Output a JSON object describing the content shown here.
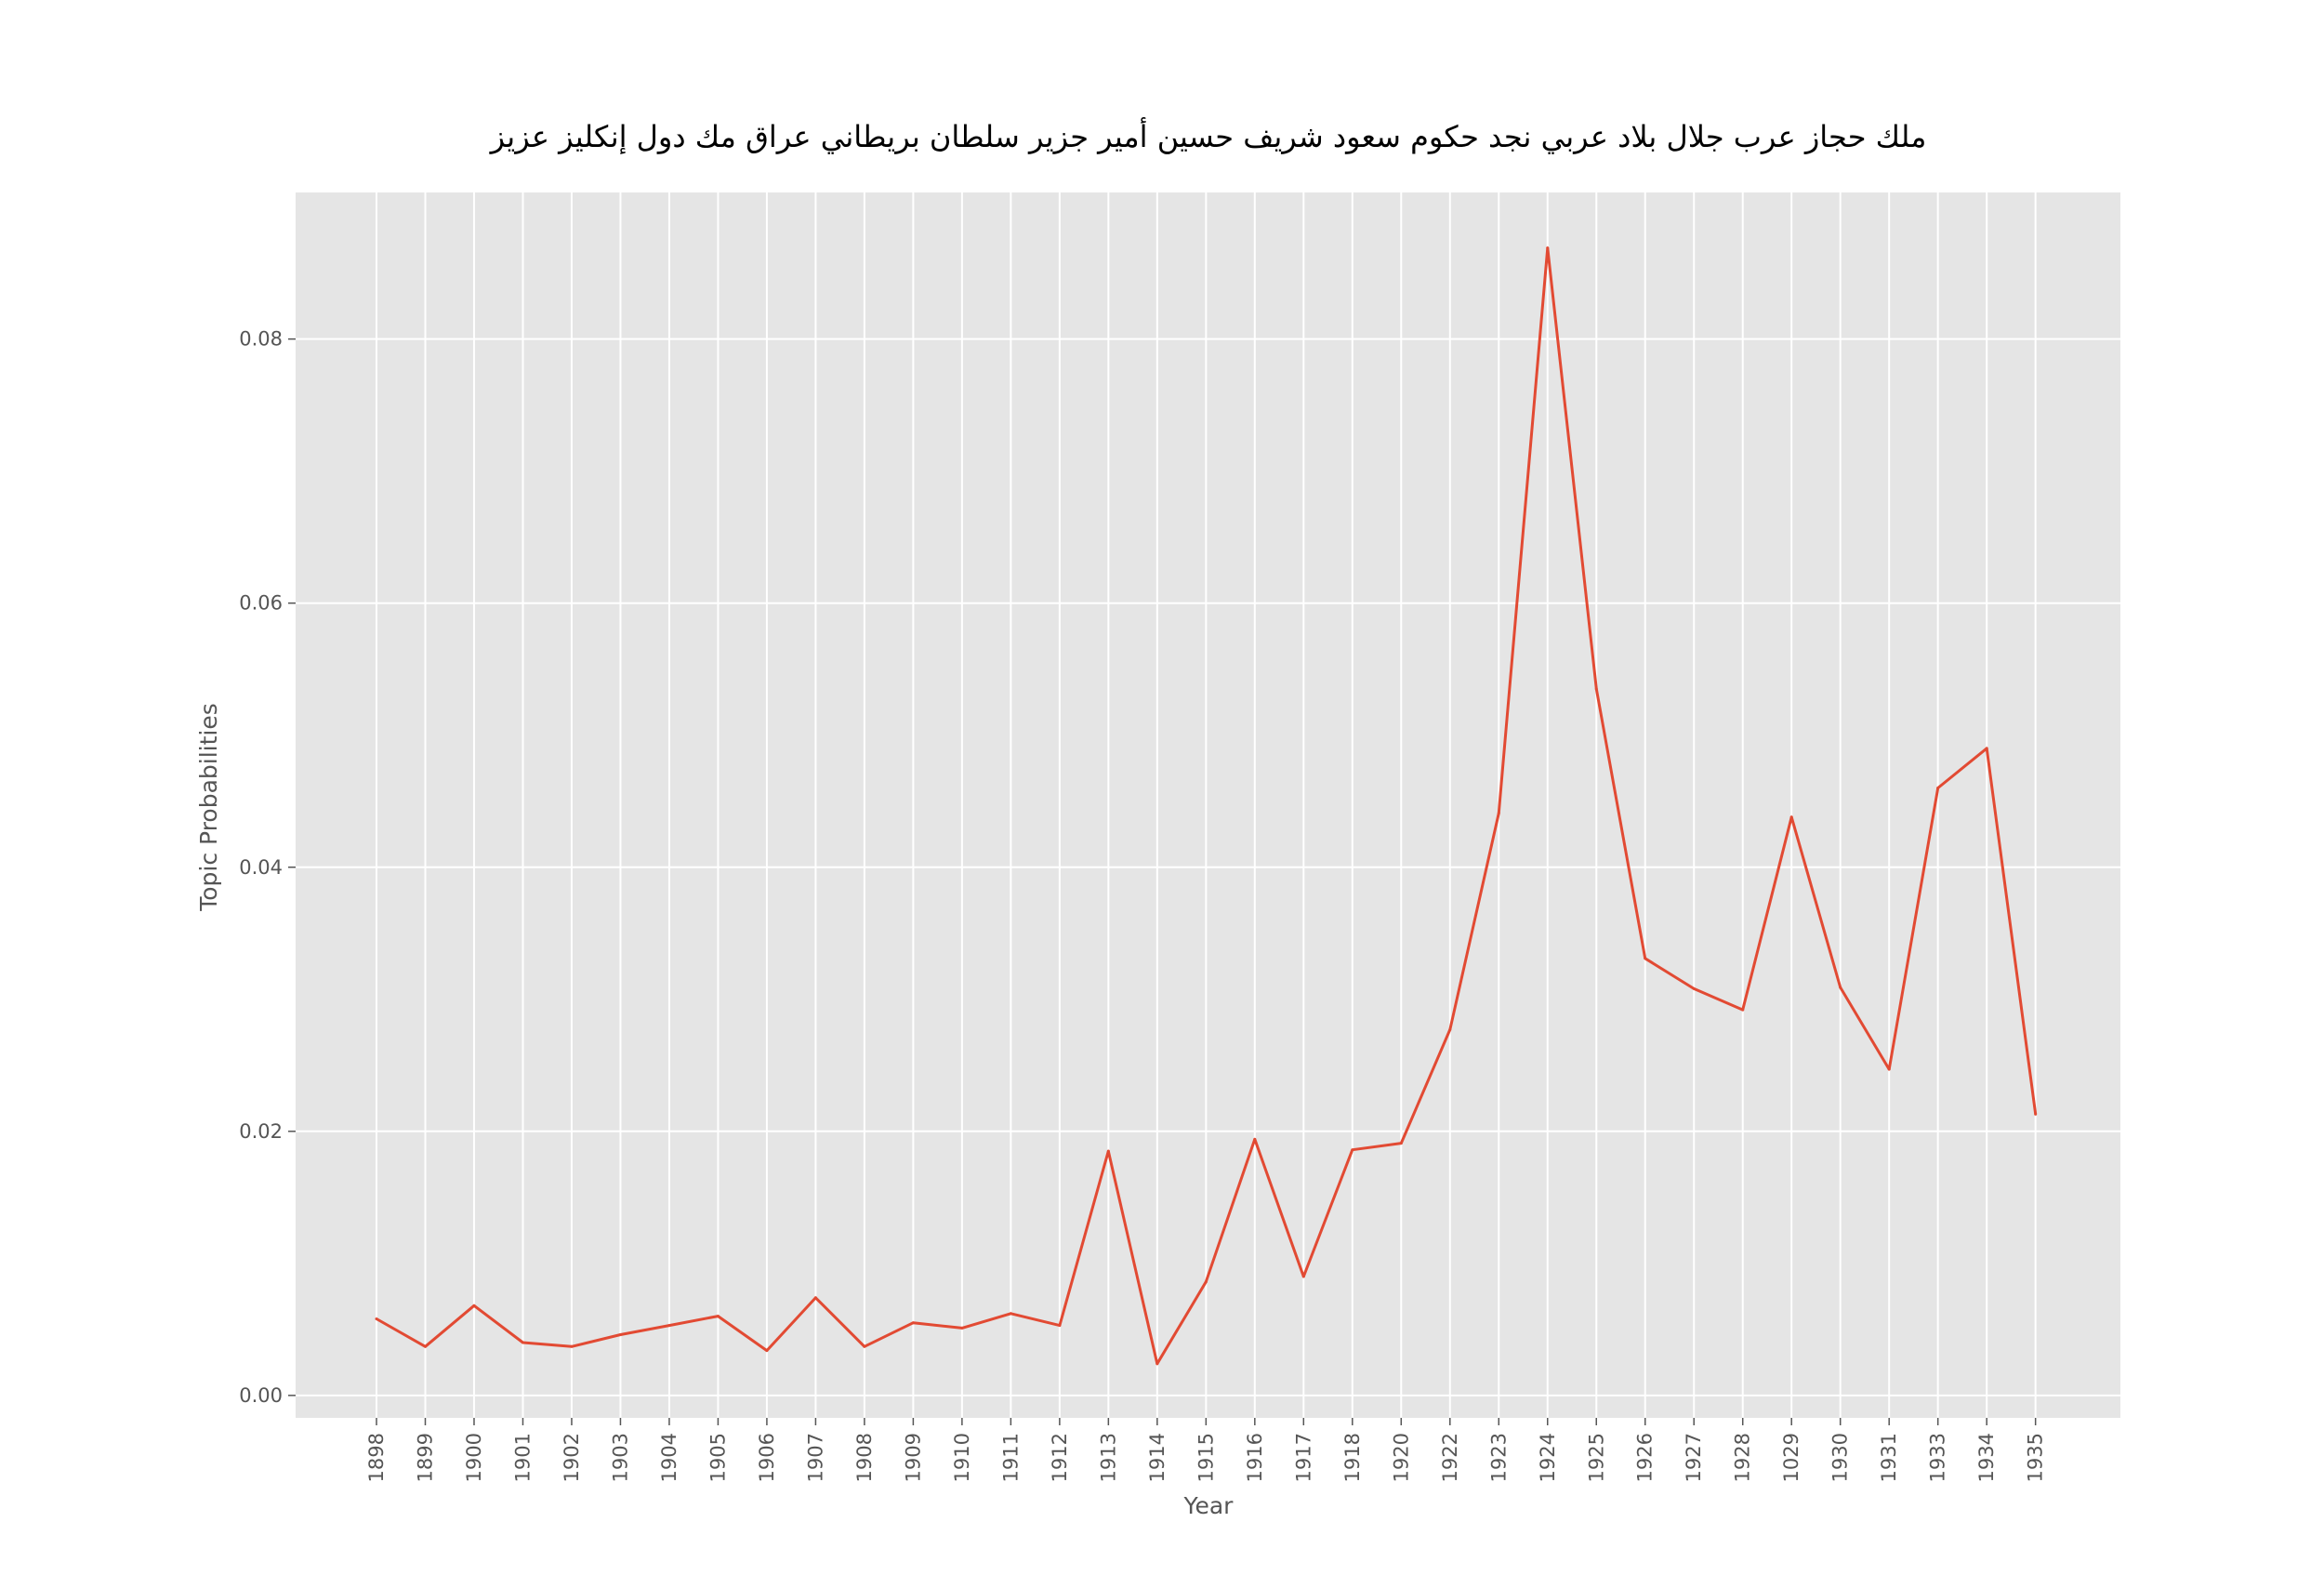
{
  "chart_data": {
    "type": "line",
    "title": "ملك حجاز عرب جلال بلاد عربي نجد حكوم سعود شريف حسين أمير جزير سلطان بريطاني عراق مك دول إنكليز عزيز",
    "xlabel": "Year",
    "ylabel": "Topic Probabilities",
    "categories": [
      "1898",
      "1899",
      "1900",
      "1901",
      "1902",
      "1903",
      "1904",
      "1905",
      "1906",
      "1907",
      "1908",
      "1909",
      "1910",
      "1911",
      "1912",
      "1913",
      "1914",
      "1915",
      "1916",
      "1917",
      "1918",
      "1920",
      "1922",
      "1923",
      "1924",
      "1925",
      "1926",
      "1927",
      "1928",
      "1029",
      "1930",
      "1931",
      "1933",
      "1934",
      "1935"
    ],
    "series": [
      {
        "values": [
          0.0058,
          0.0037,
          0.0068,
          0.004,
          0.0037,
          0.0046,
          0.0053,
          0.006,
          0.0034,
          0.0074,
          0.0037,
          0.0055,
          0.0051,
          0.0062,
          0.0053,
          0.0185,
          0.0024,
          0.0086,
          0.0194,
          0.009,
          0.0186,
          0.0191,
          0.0277,
          0.0441,
          0.0869,
          0.0535,
          0.0331,
          0.0308,
          0.0292,
          0.0438,
          0.0309,
          0.0247,
          0.046,
          0.049,
          0.0213
        ]
      }
    ],
    "yticks": [
      "0.00",
      "0.02",
      "0.04",
      "0.06",
      "0.08"
    ],
    "ylim": [
      -0.0017,
      0.0911
    ],
    "grid": true,
    "colors": {
      "line": "#E24A33",
      "plot_background": "#E5E5E5",
      "grid": "#FFFFFF",
      "text": "#555555"
    }
  }
}
